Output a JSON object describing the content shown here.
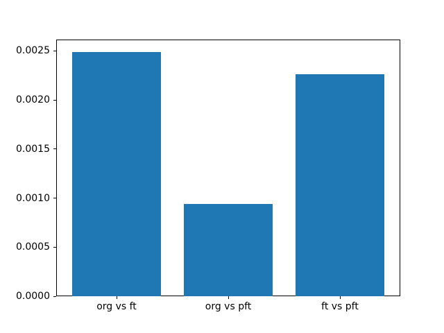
{
  "chart_data": {
    "type": "bar",
    "title": "",
    "xlabel": "",
    "ylabel": "",
    "categories": [
      "org vs ft",
      "org vs pft",
      "ft vs pft"
    ],
    "values": [
      0.00249,
      0.00094,
      0.00226
    ],
    "bar_color": "#1f77b4",
    "spine_color": "#000000",
    "text_color": "#000000",
    "background_color": "#ffffff",
    "ylim": [
      0,
      0.002615
    ],
    "xlim": [
      -0.54,
      2.54
    ],
    "bar_width_units": 0.8,
    "yticks": [
      0.0,
      0.0005,
      0.001,
      0.0015,
      0.002,
      0.0025
    ],
    "ytick_labels": [
      "0.0000",
      "0.0005",
      "0.0010",
      "0.0015",
      "0.0020",
      "0.0025"
    ],
    "grid": false,
    "legend": null
  }
}
